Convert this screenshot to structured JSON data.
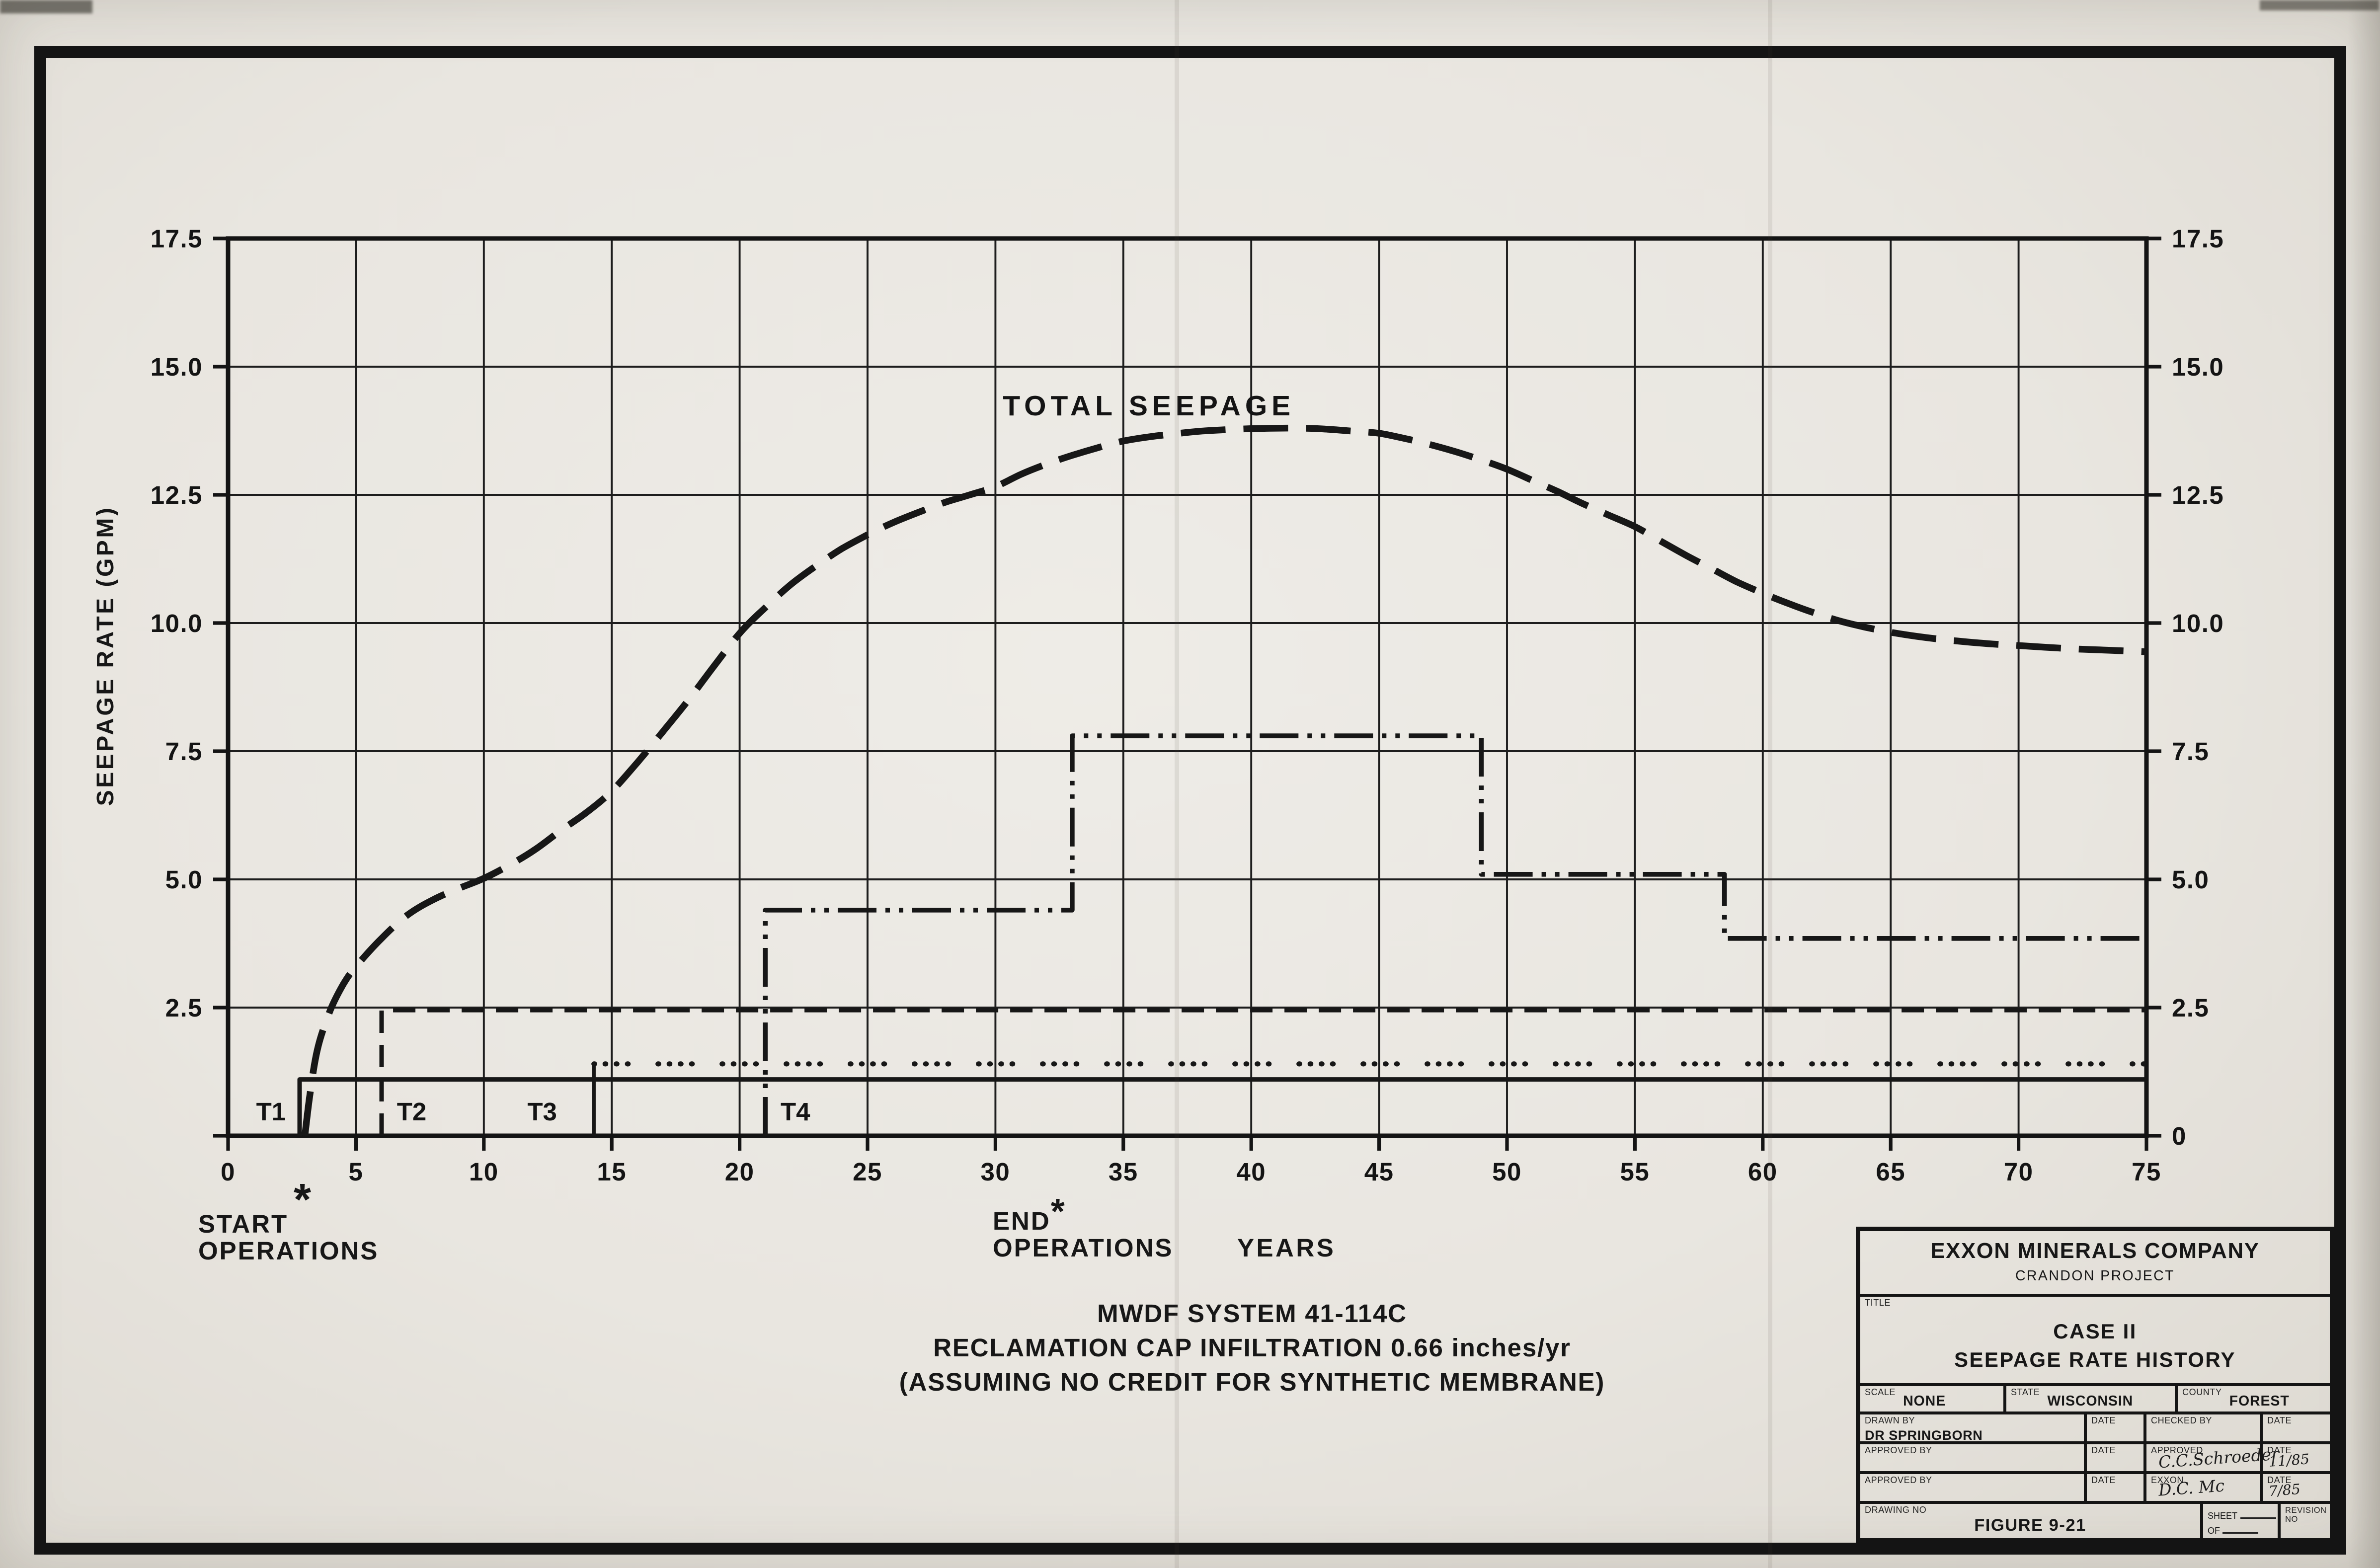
{
  "axis": {
    "start_marker": "*",
    "start_line1": "START",
    "start_line2": "OPERATIONS",
    "end_word": "END",
    "end_marker": "*",
    "end_line2": "OPERATIONS"
  },
  "caption": {
    "line1": "MWDF SYSTEM 41-114C",
    "line2": "RECLAMATION CAP INFILTRATION 0.66 inches/yr",
    "line3": "(ASSUMING NO CREDIT FOR SYNTHETIC MEMBRANE)"
  },
  "titleblock": {
    "company": "EXXON MINERALS COMPANY",
    "project": "CRANDON PROJECT",
    "title_label": "TITLE",
    "title_line1": "CASE II",
    "title_line2": "SEEPAGE RATE HISTORY",
    "scale_label": "SCALE",
    "scale_value": "NONE",
    "state_label": "STATE",
    "state_value": "WISCONSIN",
    "county_label": "COUNTY",
    "county_value": "FOREST",
    "drawn_by_label": "DRAWN BY",
    "drawn_by_value": "DR SPRINGBORN",
    "date_label": "DATE",
    "checked_by_label": "CHECKED BY",
    "approved_by_label": "APPROVED BY",
    "approved_label": "APPROVED",
    "approved_signature": "C.C.Schroeder",
    "approved_date": "11/85",
    "exxon_label": "EXXON",
    "exxon_signature": "D.C. Mc",
    "exxon_date": "7/85",
    "drawing_no_label": "DRAWING NO",
    "figure_number": "FIGURE 9-21",
    "sheet_label": "SHEET",
    "of_label": "OF",
    "revision_label": "REVISION NO"
  },
  "chart_data": {
    "type": "line",
    "title": "",
    "xlabel": "YEARS",
    "ylabel": "SEEPAGE RATE (GPM)",
    "xlim": [
      0,
      75
    ],
    "ylim": [
      0,
      17.5
    ],
    "grid": true,
    "xgrid": [
      0,
      5,
      10,
      15,
      20,
      25,
      30,
      35,
      40,
      45,
      50,
      55,
      60,
      65,
      70,
      75
    ],
    "ygrid": [
      0,
      2.5,
      5,
      7.5,
      10,
      12.5,
      15,
      17.5
    ],
    "xtick_labels": [
      [
        0,
        "0"
      ],
      [
        5,
        "5"
      ],
      [
        10,
        "10"
      ],
      [
        15,
        "15"
      ],
      [
        20,
        "20"
      ],
      [
        25,
        "25"
      ],
      [
        30,
        "30"
      ],
      [
        35,
        "35"
      ],
      [
        40,
        "40"
      ],
      [
        45,
        "45"
      ],
      [
        50,
        "50"
      ],
      [
        55,
        "55"
      ],
      [
        60,
        "60"
      ],
      [
        65,
        "65"
      ],
      [
        70,
        "70"
      ],
      [
        75,
        "75"
      ]
    ],
    "ytick_labels_left": [
      [
        2.5,
        "2.5"
      ],
      [
        5,
        "5.0"
      ],
      [
        7.5,
        "7.5"
      ],
      [
        10,
        "10.0"
      ],
      [
        12.5,
        "12.5"
      ],
      [
        15,
        "15.0"
      ],
      [
        17.5,
        "17.5"
      ]
    ],
    "ytick_labels_right": [
      [
        0,
        "0"
      ],
      [
        2.5,
        "2.5"
      ],
      [
        5,
        "5.0"
      ],
      [
        7.5,
        "7.5"
      ],
      [
        10,
        "10.0"
      ],
      [
        12.5,
        "12.5"
      ],
      [
        15,
        "15.0"
      ],
      [
        17.5,
        "17.5"
      ]
    ],
    "colors": {
      "ink": "#171717"
    },
    "series": [
      {
        "name": "TOTAL SEEPAGE",
        "line_style": "long-dash",
        "width": 4.5,
        "smooth": true,
        "points": [
          [
            3,
            0
          ],
          [
            3.2,
            0.8
          ],
          [
            3.5,
            1.7
          ],
          [
            4,
            2.45
          ],
          [
            4.5,
            2.95
          ],
          [
            5,
            3.3
          ],
          [
            6,
            3.85
          ],
          [
            7,
            4.3
          ],
          [
            8,
            4.6
          ],
          [
            9,
            4.82
          ],
          [
            10,
            5.02
          ],
          [
            11,
            5.28
          ],
          [
            12,
            5.58
          ],
          [
            13,
            5.95
          ],
          [
            14,
            6.3
          ],
          [
            15,
            6.72
          ],
          [
            16,
            7.28
          ],
          [
            17,
            7.88
          ],
          [
            18,
            8.5
          ],
          [
            19,
            9.16
          ],
          [
            20,
            9.8
          ],
          [
            21,
            10.3
          ],
          [
            22,
            10.75
          ],
          [
            23,
            11.12
          ],
          [
            24,
            11.45
          ],
          [
            25,
            11.72
          ],
          [
            26,
            11.96
          ],
          [
            27,
            12.16
          ],
          [
            28,
            12.35
          ],
          [
            29,
            12.5
          ],
          [
            30,
            12.66
          ],
          [
            31,
            12.9
          ],
          [
            32,
            13.1
          ],
          [
            33,
            13.27
          ],
          [
            34,
            13.42
          ],
          [
            35,
            13.55
          ],
          [
            36,
            13.63
          ],
          [
            37,
            13.69
          ],
          [
            38,
            13.74
          ],
          [
            39,
            13.77
          ],
          [
            40,
            13.79
          ],
          [
            41,
            13.8
          ],
          [
            42,
            13.8
          ],
          [
            43,
            13.78
          ],
          [
            44,
            13.74
          ],
          [
            45,
            13.7
          ],
          [
            46,
            13.6
          ],
          [
            47,
            13.48
          ],
          [
            48,
            13.34
          ],
          [
            49,
            13.18
          ],
          [
            50,
            13
          ],
          [
            51,
            12.78
          ],
          [
            52,
            12.56
          ],
          [
            53,
            12.32
          ],
          [
            54,
            12.1
          ],
          [
            55,
            11.88
          ],
          [
            56,
            11.6
          ],
          [
            57,
            11.32
          ],
          [
            58,
            11.06
          ],
          [
            59,
            10.8
          ],
          [
            60,
            10.58
          ],
          [
            61,
            10.38
          ],
          [
            62,
            10.2
          ],
          [
            63,
            10.04
          ],
          [
            64,
            9.92
          ],
          [
            65,
            9.82
          ],
          [
            66,
            9.74
          ],
          [
            67,
            9.68
          ],
          [
            68,
            9.63
          ],
          [
            69,
            9.59
          ],
          [
            70,
            9.56
          ],
          [
            71,
            9.53
          ],
          [
            72,
            9.5
          ],
          [
            73,
            9.48
          ],
          [
            74,
            9.46
          ],
          [
            75,
            9.44
          ]
        ]
      },
      {
        "name": "T4",
        "line_style": "dash-dot-dot",
        "width": 3.2,
        "smooth": false,
        "points": [
          [
            21,
            0
          ],
          [
            21,
            4.4
          ],
          [
            33,
            4.4
          ],
          [
            33,
            7.8
          ],
          [
            49,
            7.8
          ],
          [
            49,
            5.1
          ],
          [
            58.5,
            5.1
          ],
          [
            58.5,
            3.85
          ],
          [
            75,
            3.85
          ]
        ]
      },
      {
        "name": "T2",
        "line_style": "dash",
        "width": 3,
        "smooth": false,
        "points": [
          [
            6,
            0
          ],
          [
            6,
            2.45
          ],
          [
            75,
            2.45
          ]
        ]
      },
      {
        "name": "T3",
        "line_style": "dotted",
        "width": 3.4,
        "smooth": false,
        "points": [
          [
            14.3,
            1.4
          ],
          [
            75,
            1.4
          ]
        ]
      },
      {
        "name": "T1",
        "line_style": "solid",
        "width": 3,
        "smooth": false,
        "points": [
          [
            2.8,
            0
          ],
          [
            2.8,
            1.1
          ],
          [
            75,
            1.1
          ]
        ]
      }
    ],
    "risers": [
      {
        "x": 14.3,
        "y0": 0,
        "y1": 1.4,
        "width": 2.5
      }
    ],
    "annotations": [
      {
        "text": "TOTAL SEEPAGE",
        "x": 36,
        "y": 14.05,
        "anchor": "middle",
        "kind": "series-label"
      },
      {
        "text": "T1",
        "x": 1.1,
        "y": 0.3,
        "anchor": "start",
        "kind": "marker"
      },
      {
        "text": "T2",
        "x": 6.6,
        "y": 0.3,
        "anchor": "start",
        "kind": "marker"
      },
      {
        "text": "T3",
        "x": 11.7,
        "y": 0.3,
        "anchor": "start",
        "kind": "marker"
      },
      {
        "text": "T4",
        "x": 21.6,
        "y": 0.3,
        "anchor": "start",
        "kind": "marker"
      }
    ]
  }
}
